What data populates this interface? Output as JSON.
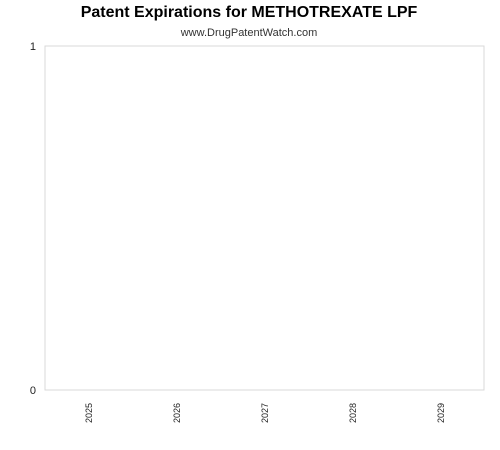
{
  "chart_data": {
    "type": "bar",
    "title": "Patent Expirations for METHOTREXATE LPF",
    "subtitle": "www.DrugPatentWatch.com",
    "xlabel": "",
    "ylabel": "",
    "categories": [
      "2025",
      "2026",
      "2027",
      "2028",
      "2029"
    ],
    "values": [
      0,
      0,
      0,
      0,
      0
    ],
    "ylim": [
      0,
      1
    ],
    "yticks": [
      "0",
      "1"
    ],
    "grid": false,
    "legend": "none",
    "colors": {
      "plot_border": "#d9d9d9",
      "bar": "#4a7ebb"
    }
  }
}
